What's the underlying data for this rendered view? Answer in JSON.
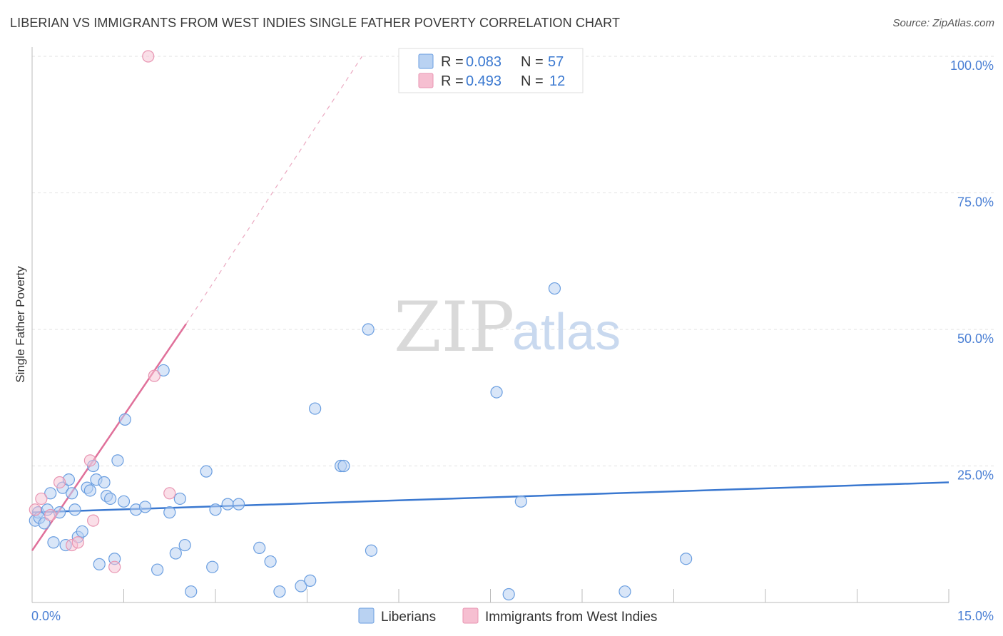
{
  "title": "LIBERIAN VS IMMIGRANTS FROM WEST INDIES SINGLE FATHER POVERTY CORRELATION CHART",
  "source": "Source: ZipAtlas.com",
  "watermark": {
    "part1": "ZIP",
    "part2": "atlas"
  },
  "colors": {
    "blue": "#3a78d0",
    "blue_fill": "#b9d2f2",
    "pink": "#e0709a",
    "pink_fill": "#f6bfd1"
  },
  "chart_data": {
    "type": "scatter",
    "ylabel": "Single Father Poverty",
    "xlim": [
      0,
      15
    ],
    "ylim": [
      0,
      100
    ],
    "x_ticks": {
      "left": "0.0%",
      "right": "15.0%"
    },
    "y_ticks": [
      {
        "value": 100,
        "label": "100.0%"
      },
      {
        "value": 75,
        "label": "75.0%"
      },
      {
        "value": 50,
        "label": "50.0%"
      },
      {
        "value": 25,
        "label": "25.0%"
      }
    ],
    "legend": {
      "rows": [
        {
          "r_label": "R =",
          "r": "0.083",
          "n_label": "N =",
          "n": "57"
        },
        {
          "r_label": "R =",
          "r": "0.493",
          "n_label": "N =",
          "n": "12"
        }
      ]
    },
    "series": [
      {
        "name": "Liberians",
        "color": "#3a78d0",
        "trend": {
          "x0": 0,
          "y0": 16.5,
          "x1": 15,
          "y1": 22.0
        },
        "points": [
          [
            0.05,
            15.0
          ],
          [
            0.1,
            16.5
          ],
          [
            0.12,
            15.5
          ],
          [
            0.2,
            14.5
          ],
          [
            0.25,
            17.0
          ],
          [
            0.3,
            20.0
          ],
          [
            0.35,
            11.0
          ],
          [
            0.45,
            16.5
          ],
          [
            0.5,
            21.0
          ],
          [
            0.55,
            10.5
          ],
          [
            0.6,
            22.5
          ],
          [
            0.65,
            20.0
          ],
          [
            0.7,
            17.0
          ],
          [
            0.75,
            12.0
          ],
          [
            0.82,
            13.0
          ],
          [
            0.9,
            21.0
          ],
          [
            0.95,
            20.5
          ],
          [
            1.0,
            25.0
          ],
          [
            1.05,
            22.5
          ],
          [
            1.1,
            7.0
          ],
          [
            1.18,
            22.0
          ],
          [
            1.22,
            19.5
          ],
          [
            1.28,
            19.0
          ],
          [
            1.35,
            8.0
          ],
          [
            1.4,
            26.0
          ],
          [
            1.5,
            18.5
          ],
          [
            1.52,
            33.5
          ],
          [
            1.7,
            17.0
          ],
          [
            1.85,
            17.5
          ],
          [
            2.05,
            6.0
          ],
          [
            2.15,
            42.5
          ],
          [
            2.25,
            16.5
          ],
          [
            2.35,
            9.0
          ],
          [
            2.42,
            19.0
          ],
          [
            2.5,
            10.5
          ],
          [
            2.6,
            2.0
          ],
          [
            2.85,
            24.0
          ],
          [
            2.95,
            6.5
          ],
          [
            3.0,
            17.0
          ],
          [
            3.2,
            18.0
          ],
          [
            3.38,
            18.0
          ],
          [
            3.72,
            10.0
          ],
          [
            3.9,
            7.5
          ],
          [
            4.05,
            2.0
          ],
          [
            4.4,
            3.0
          ],
          [
            4.55,
            4.0
          ],
          [
            4.63,
            35.5
          ],
          [
            5.05,
            25.0
          ],
          [
            5.1,
            25.0
          ],
          [
            5.5,
            50.0
          ],
          [
            5.55,
            9.5
          ],
          [
            7.6,
            38.5
          ],
          [
            7.8,
            1.5
          ],
          [
            8.0,
            18.5
          ],
          [
            8.55,
            57.5
          ],
          [
            9.7,
            2.0
          ],
          [
            10.7,
            8.0
          ]
        ]
      },
      {
        "name": "Immigrants from West Indies",
        "color": "#e0709a",
        "trend": {
          "x0": 0,
          "y0": 9.5,
          "x1": 2.52,
          "y1": 51.0
        },
        "trend_dashed": {
          "x0": 2.52,
          "y0": 51.0,
          "x1": 5.4,
          "y1": 100.0
        },
        "points": [
          [
            0.05,
            17.0
          ],
          [
            0.15,
            19.0
          ],
          [
            0.3,
            16.0
          ],
          [
            0.45,
            22.0
          ],
          [
            0.65,
            10.5
          ],
          [
            0.75,
            11.0
          ],
          [
            0.95,
            26.0
          ],
          [
            1.0,
            15.0
          ],
          [
            1.35,
            6.5
          ],
          [
            1.9,
            100.0
          ],
          [
            2.0,
            41.5
          ],
          [
            2.25,
            20.0
          ]
        ]
      }
    ]
  }
}
